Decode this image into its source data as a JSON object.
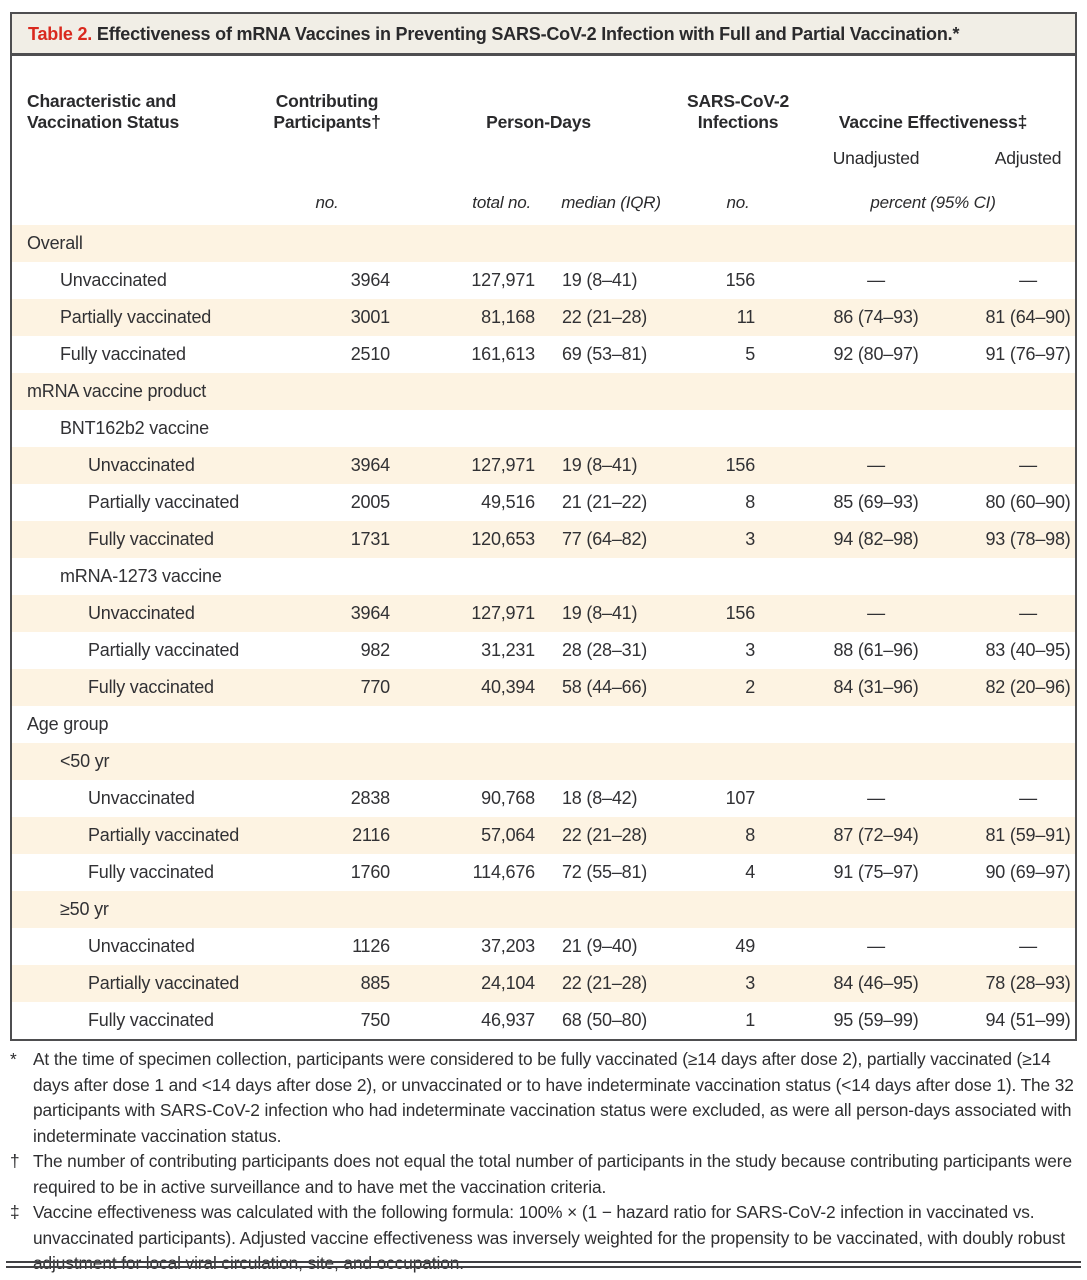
{
  "table": {
    "title": {
      "label": "Table 2.",
      "text": "Effectiveness of mRNA Vaccines in Preventing SARS-CoV-2 Infection with Full and Partial Vaccination.*"
    },
    "header": {
      "characteristic": "Characteristic and Vaccination Status",
      "participants": "Contributing Participants†",
      "person_days": "Person-Days",
      "infections": "SARS-CoV-2 Infections",
      "effectiveness": "Vaccine Effectiveness‡",
      "unadjusted": "Unadjusted",
      "adjusted": "Adjusted",
      "units": {
        "participants": "no.",
        "person_days_total": "total no.",
        "person_days_median": "median (IQR)",
        "infections": "no.",
        "effectiveness": "percent (95% CI)"
      }
    },
    "rows": [
      {
        "label": "Overall",
        "indent": 0,
        "participants": "",
        "person_days_total": "",
        "median_iqr": "",
        "infections": "",
        "unadjusted": "",
        "adjusted": ""
      },
      {
        "label": "Unvaccinated",
        "indent": 1,
        "participants": "3964",
        "person_days_total": "127,971",
        "median_iqr": "19 (8–41)",
        "infections": "156",
        "unadjusted": "—",
        "adjusted": "—"
      },
      {
        "label": "Partially vaccinated",
        "indent": 1,
        "participants": "3001",
        "person_days_total": "81,168",
        "median_iqr": "22 (21–28)",
        "infections": "11",
        "unadjusted": "86 (74–93)",
        "adjusted": "81 (64–90)"
      },
      {
        "label": "Fully vaccinated",
        "indent": 1,
        "participants": "2510",
        "person_days_total": "161,613",
        "median_iqr": "69 (53–81)",
        "infections": "5",
        "unadjusted": "92 (80–97)",
        "adjusted": "91 (76–97)"
      },
      {
        "label": "mRNA vaccine product",
        "indent": 0,
        "participants": "",
        "person_days_total": "",
        "median_iqr": "",
        "infections": "",
        "unadjusted": "",
        "adjusted": ""
      },
      {
        "label": "BNT162b2 vaccine",
        "indent": 1,
        "participants": "",
        "person_days_total": "",
        "median_iqr": "",
        "infections": "",
        "unadjusted": "",
        "adjusted": ""
      },
      {
        "label": "Unvaccinated",
        "indent": 2,
        "participants": "3964",
        "person_days_total": "127,971",
        "median_iqr": "19 (8–41)",
        "infections": "156",
        "unadjusted": "—",
        "adjusted": "—"
      },
      {
        "label": "Partially vaccinated",
        "indent": 2,
        "participants": "2005",
        "person_days_total": "49,516",
        "median_iqr": "21 (21–22)",
        "infections": "8",
        "unadjusted": "85 (69–93)",
        "adjusted": "80 (60–90)"
      },
      {
        "label": "Fully vaccinated",
        "indent": 2,
        "participants": "1731",
        "person_days_total": "120,653",
        "median_iqr": "77 (64–82)",
        "infections": "3",
        "unadjusted": "94 (82–98)",
        "adjusted": "93 (78–98)"
      },
      {
        "label": "mRNA-1273 vaccine",
        "indent": 1,
        "participants": "",
        "person_days_total": "",
        "median_iqr": "",
        "infections": "",
        "unadjusted": "",
        "adjusted": ""
      },
      {
        "label": "Unvaccinated",
        "indent": 2,
        "participants": "3964",
        "person_days_total": "127,971",
        "median_iqr": "19 (8–41)",
        "infections": "156",
        "unadjusted": "—",
        "adjusted": "—"
      },
      {
        "label": "Partially vaccinated",
        "indent": 2,
        "participants": "982",
        "person_days_total": "31,231",
        "median_iqr": "28 (28–31)",
        "infections": "3",
        "unadjusted": "88 (61–96)",
        "adjusted": "83 (40–95)"
      },
      {
        "label": "Fully vaccinated",
        "indent": 2,
        "participants": "770",
        "person_days_total": "40,394",
        "median_iqr": "58 (44–66)",
        "infections": "2",
        "unadjusted": "84 (31–96)",
        "adjusted": "82 (20–96)"
      },
      {
        "label": "Age group",
        "indent": 0,
        "participants": "",
        "person_days_total": "",
        "median_iqr": "",
        "infections": "",
        "unadjusted": "",
        "adjusted": ""
      },
      {
        "label": "<50 yr",
        "indent": 1,
        "participants": "",
        "person_days_total": "",
        "median_iqr": "",
        "infections": "",
        "unadjusted": "",
        "adjusted": ""
      },
      {
        "label": "Unvaccinated",
        "indent": 2,
        "participants": "2838",
        "person_days_total": "90,768",
        "median_iqr": "18 (8–42)",
        "infections": "107",
        "unadjusted": "—",
        "adjusted": "—"
      },
      {
        "label": "Partially vaccinated",
        "indent": 2,
        "participants": "2116",
        "person_days_total": "57,064",
        "median_iqr": "22 (21–28)",
        "infections": "8",
        "unadjusted": "87 (72–94)",
        "adjusted": "81 (59–91)"
      },
      {
        "label": "Fully vaccinated",
        "indent": 2,
        "participants": "1760",
        "person_days_total": "114,676",
        "median_iqr": "72 (55–81)",
        "infections": "4",
        "unadjusted": "91 (75–97)",
        "adjusted": "90 (69–97)"
      },
      {
        "label": "≥50 yr",
        "indent": 1,
        "participants": "",
        "person_days_total": "",
        "median_iqr": "",
        "infections": "",
        "unadjusted": "",
        "adjusted": ""
      },
      {
        "label": "Unvaccinated",
        "indent": 2,
        "participants": "1126",
        "person_days_total": "37,203",
        "median_iqr": "21 (9–40)",
        "infections": "49",
        "unadjusted": "—",
        "adjusted": "—"
      },
      {
        "label": "Partially vaccinated",
        "indent": 2,
        "participants": "885",
        "person_days_total": "24,104",
        "median_iqr": "22 (21–28)",
        "infections": "3",
        "unadjusted": "84 (46–95)",
        "adjusted": "78 (28–93)"
      },
      {
        "label": "Fully vaccinated",
        "indent": 2,
        "participants": "750",
        "person_days_total": "46,937",
        "median_iqr": "68 (50–80)",
        "infections": "1",
        "unadjusted": "95 (59–99)",
        "adjusted": "94 (51–99)"
      }
    ],
    "footnotes": [
      {
        "marker": "*",
        "text": "At the time of specimen collection, participants were considered to be fully vaccinated (≥14 days after dose 2), partially vaccinated (≥14 days after dose 1 and <14 days after dose 2), or unvaccinated or to have indeterminate vaccination status (<14 days after dose 1). The 32 participants with SARS-CoV-2 infection who had indeterminate vaccination status were excluded, as were all person-days associated with indeterminate vaccination status."
      },
      {
        "marker": "†",
        "text": "The number of contributing participants does not equal the total number of participants in the study because contributing participants were required to be in active surveillance and to have met the vaccination criteria."
      },
      {
        "marker": "‡",
        "text": "Vaccine effectiveness was calculated with the following formula: 100% × (1 − hazard ratio for SARS-CoV-2 infection in vaccinated vs. unvaccinated participants). Adjusted vaccine effectiveness was inversely weighted for the propensity to be vaccinated, with doubly robust adjustment for local viral circulation, site, and occupation."
      }
    ],
    "colors": {
      "accent_red": "#d9291e",
      "row_cream": "#fdf3e2",
      "title_bar_bg": "#f1eee6",
      "frame_border": "#4e4e50",
      "text": "#2e2e30"
    }
  }
}
